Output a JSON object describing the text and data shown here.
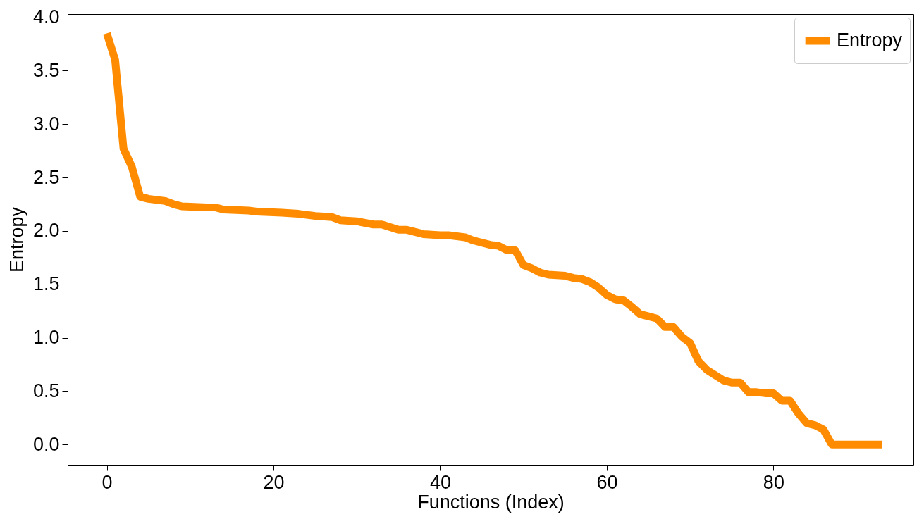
{
  "chart_data": {
    "type": "line",
    "xlabel": "Functions (Index)",
    "ylabel": "Entropy",
    "xlim": [
      -4.7,
      96.8
    ],
    "ylim": [
      -0.19,
      4.03
    ],
    "xticks": [
      0,
      20,
      40,
      60,
      80
    ],
    "yticks": [
      {
        "value": 0,
        "label": "0.0"
      },
      0.5,
      {
        "value": 1,
        "label": "1.0"
      },
      1.5,
      {
        "value": 2,
        "label": "2.0"
      },
      2.5,
      {
        "value": 3,
        "label": "3.0"
      },
      3.5,
      {
        "value": 4,
        "label": "4.0"
      }
    ],
    "grid": false,
    "legend": "top right",
    "marker": "none",
    "line_style": "solid",
    "series": [
      {
        "name": "Entropy",
        "color": "#ff8c00",
        "x": [
          0,
          1,
          2,
          3,
          4,
          5,
          6,
          7,
          8,
          9,
          12,
          13,
          14,
          17,
          18,
          21,
          23,
          25,
          27,
          28,
          30,
          32,
          33,
          35,
          36,
          38,
          40,
          41,
          43,
          44,
          46,
          47,
          48,
          49,
          50,
          51,
          52,
          53,
          55,
          56,
          57,
          58,
          59,
          60,
          61,
          62,
          63,
          64,
          65,
          66,
          67,
          68,
          69,
          70,
          71,
          72,
          73,
          74,
          75,
          76,
          77,
          78,
          79,
          80,
          81,
          82,
          83,
          84,
          85,
          86,
          87,
          93
        ],
        "values": [
          3.85,
          3.6,
          2.77,
          2.6,
          2.32,
          2.3,
          2.29,
          2.28,
          2.25,
          2.23,
          2.22,
          2.22,
          2.2,
          2.19,
          2.18,
          2.17,
          2.16,
          2.14,
          2.13,
          2.1,
          2.09,
          2.06,
          2.06,
          2.01,
          2.01,
          1.97,
          1.96,
          1.96,
          1.94,
          1.91,
          1.87,
          1.86,
          1.82,
          1.82,
          1.68,
          1.65,
          1.61,
          1.59,
          1.58,
          1.56,
          1.55,
          1.52,
          1.47,
          1.4,
          1.36,
          1.35,
          1.29,
          1.22,
          1.2,
          1.18,
          1.1,
          1.1,
          1.01,
          0.95,
          0.78,
          0.7,
          0.65,
          0.6,
          0.58,
          0.58,
          0.49,
          0.49,
          0.48,
          0.48,
          0.41,
          0.41,
          0.29,
          0.2,
          0.18,
          0.14,
          0,
          0
        ]
      }
    ]
  }
}
